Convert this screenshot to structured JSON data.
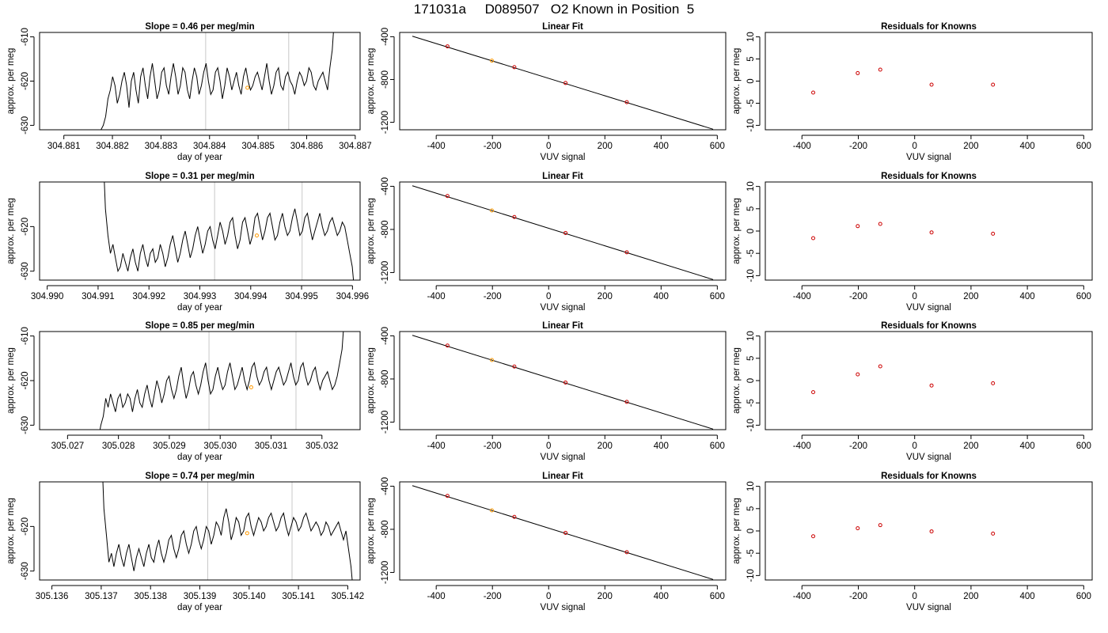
{
  "figure": {
    "title": "171031a     D089507   O2 Known in Position  5"
  },
  "colors": {
    "trace": "#000000",
    "known_points": "#cc0000",
    "highlight_point": "#ff9900",
    "marker_lines": "#c8c8c8",
    "fit_line": "#000000"
  },
  "chart_data": [
    {
      "type": "line",
      "row": 0,
      "col": 0,
      "title": "Slope =  0.46  per meg/min",
      "xlabel": "day of year",
      "ylabel": "approx. per meg",
      "xlim": [
        304.8805,
        304.8871
      ],
      "ylim": [
        -631,
        -609
      ],
      "xticks": [
        304.881,
        304.882,
        304.883,
        304.884,
        304.885,
        304.886,
        304.887
      ],
      "xtick_labels": [
        "304.881",
        "304.882",
        "304.883",
        "304.884",
        "304.885",
        "304.886",
        "304.887"
      ],
      "yticks": [
        -630,
        -620,
        -610
      ],
      "ytick_labels": [
        "-630",
        "-620",
        "-610"
      ],
      "trace_x_start": 304.88174,
      "trace_x_end": 304.88655,
      "trace_start_y": -631.5,
      "trace_end_y": -609,
      "trace_values": [
        -631,
        -630,
        -628,
        -624,
        -622,
        -619,
        -621,
        -625,
        -623,
        -620,
        -618,
        -621,
        -626,
        -620,
        -618,
        -622,
        -625,
        -619,
        -617,
        -621,
        -624,
        -619,
        -616,
        -620,
        -624,
        -622,
        -618,
        -617,
        -621,
        -623,
        -619,
        -616,
        -619,
        -623,
        -621,
        -617,
        -618,
        -622,
        -624,
        -620,
        -617,
        -619,
        -623,
        -621,
        -618,
        -616,
        -620,
        -623,
        -622,
        -618,
        -617,
        -620,
        -624,
        -621,
        -617,
        -619,
        -622,
        -620,
        -618,
        -621,
        -623,
        -619,
        -617,
        -620,
        -622,
        -621,
        -619,
        -618,
        -620,
        -622,
        -619,
        -616,
        -620,
        -623,
        -621,
        -618,
        -617,
        -621,
        -622,
        -619,
        -618,
        -620,
        -621,
        -623,
        -620,
        -618,
        -619,
        -621,
        -620,
        -617,
        -618,
        -621,
        -622,
        -620,
        -619,
        -618,
        -620,
        -622,
        -617,
        -613
      ],
      "marker_lines_x": [
        304.88392,
        304.88563
      ],
      "highlight_point": {
        "x": 304.88478,
        "y": -621.5
      }
    },
    {
      "type": "scatter",
      "row": 0,
      "col": 1,
      "title": "Linear Fit",
      "xlabel": "VUV signal",
      "ylabel": "approx. per meg",
      "xlim": [
        -530,
        630
      ],
      "ylim": [
        -1270,
        -360
      ],
      "xticks": [
        -400,
        -200,
        0,
        200,
        400,
        600
      ],
      "xtick_labels": [
        "-400",
        "-200",
        "0",
        "200",
        "400",
        "600"
      ],
      "yticks": [
        -1200,
        -800,
        -400
      ],
      "ytick_labels": [
        "-1200",
        "-800",
        "-400"
      ],
      "fit_line": {
        "x": [
          -485,
          585
        ],
        "y": [
          -395,
          -1265
        ]
      },
      "points": [
        {
          "x": -360,
          "y": -490
        },
        {
          "x": -122,
          "y": -685
        },
        {
          "x": 60,
          "y": -833
        },
        {
          "x": 278,
          "y": -1012
        }
      ],
      "highlight_point": {
        "x": -202,
        "y": -624
      }
    },
    {
      "type": "scatter",
      "row": 0,
      "col": 2,
      "title": "Residuals for Knowns",
      "xlabel": "VUV signal",
      "ylabel": "approx. per meg",
      "xlim": [
        -530,
        630
      ],
      "ylim": [
        -11,
        11
      ],
      "xticks": [
        -400,
        -200,
        0,
        200,
        400,
        600
      ],
      "xtick_labels": [
        "-400",
        "-200",
        "0",
        "200",
        "400",
        "600"
      ],
      "yticks": [
        -10,
        -5,
        0,
        5,
        10
      ],
      "ytick_labels": [
        "-10",
        "-5",
        "0",
        "5",
        "10"
      ],
      "points": [
        {
          "x": -360,
          "y": -2.6
        },
        {
          "x": -202,
          "y": 1.8
        },
        {
          "x": -122,
          "y": 2.6
        },
        {
          "x": 60,
          "y": -0.8
        },
        {
          "x": 278,
          "y": -0.8
        }
      ]
    },
    {
      "type": "line",
      "row": 1,
      "col": 0,
      "title": "Slope =  0.31  per meg/min",
      "xlabel": "day of year",
      "ylabel": "approx. per meg",
      "xlim": [
        304.98985,
        304.99615
      ],
      "ylim": [
        -632,
        -610
      ],
      "xticks": [
        304.99,
        304.991,
        304.992,
        304.993,
        304.994,
        304.995,
        304.996
      ],
      "xtick_labels": [
        "304.990",
        "304.991",
        "304.992",
        "304.993",
        "304.994",
        "304.995",
        "304.996"
      ],
      "yticks": [
        -630,
        -620
      ],
      "ytick_labels": [
        "-630",
        "-620"
      ],
      "trace_x_start": 304.99112,
      "trace_x_end": 304.99602,
      "trace_start_y": -609,
      "trace_end_y": -632,
      "trace_values": [
        -616,
        -622,
        -626,
        -624,
        -627,
        -630,
        -629,
        -626,
        -628,
        -630,
        -627,
        -625,
        -628,
        -630,
        -626,
        -624,
        -627,
        -629,
        -626,
        -625,
        -628,
        -627,
        -624,
        -626,
        -629,
        -627,
        -624,
        -622,
        -625,
        -628,
        -626,
        -623,
        -621,
        -624,
        -627,
        -625,
        -622,
        -620,
        -623,
        -626,
        -624,
        -621,
        -620,
        -623,
        -625,
        -622,
        -619,
        -621,
        -624,
        -622,
        -619,
        -618,
        -622,
        -625,
        -623,
        -619,
        -618,
        -621,
        -624,
        -622,
        -618,
        -617,
        -620,
        -623,
        -621,
        -618,
        -617,
        -620,
        -623,
        -622,
        -619,
        -617,
        -620,
        -622,
        -621,
        -618,
        -616,
        -619,
        -622,
        -621,
        -618,
        -617,
        -620,
        -623,
        -621,
        -619,
        -617,
        -620,
        -622,
        -621,
        -619,
        -618,
        -620,
        -622,
        -621,
        -619,
        -620,
        -623,
        -626,
        -629
      ],
      "marker_lines_x": [
        304.99329,
        304.99501
      ],
      "highlight_point": {
        "x": 304.99412,
        "y": -622
      }
    },
    {
      "type": "scatter",
      "row": 1,
      "col": 1,
      "title": "Linear Fit",
      "xlabel": "VUV signal",
      "ylabel": "approx. per meg",
      "xlim": [
        -530,
        630
      ],
      "ylim": [
        -1270,
        -360
      ],
      "xticks": [
        -400,
        -200,
        0,
        200,
        400,
        600
      ],
      "xtick_labels": [
        "-400",
        "-200",
        "0",
        "200",
        "400",
        "600"
      ],
      "yticks": [
        -1200,
        -800,
        -400
      ],
      "ytick_labels": [
        "-1200",
        "-800",
        "-400"
      ],
      "fit_line": {
        "x": [
          -485,
          585
        ],
        "y": [
          -395,
          -1265
        ]
      },
      "points": [
        {
          "x": -360,
          "y": -490
        },
        {
          "x": -122,
          "y": -685
        },
        {
          "x": 60,
          "y": -833
        },
        {
          "x": 278,
          "y": -1012
        }
      ],
      "highlight_point": {
        "x": -202,
        "y": -624
      }
    },
    {
      "type": "scatter",
      "row": 1,
      "col": 2,
      "title": "Residuals for Knowns",
      "xlabel": "VUV signal",
      "ylabel": "approx. per meg",
      "xlim": [
        -530,
        630
      ],
      "ylim": [
        -11,
        11
      ],
      "xticks": [
        -400,
        -200,
        0,
        200,
        400,
        600
      ],
      "xtick_labels": [
        "-400",
        "-200",
        "0",
        "200",
        "400",
        "600"
      ],
      "yticks": [
        -10,
        -5,
        0,
        5,
        10
      ],
      "ytick_labels": [
        "-10",
        "-5",
        "0",
        "5",
        "10"
      ],
      "points": [
        {
          "x": -360,
          "y": -1.6
        },
        {
          "x": -202,
          "y": 1.1
        },
        {
          "x": -122,
          "y": 1.6
        },
        {
          "x": 60,
          "y": -0.3
        },
        {
          "x": 278,
          "y": -0.6
        }
      ]
    },
    {
      "type": "line",
      "row": 2,
      "col": 0,
      "title": "Slope =  0.85  per meg/min",
      "xlabel": "day of year",
      "ylabel": "approx. per meg",
      "xlim": [
        305.02645,
        305.03275
      ],
      "ylim": [
        -631,
        -609
      ],
      "xticks": [
        305.027,
        305.028,
        305.029,
        305.03,
        305.031,
        305.032
      ],
      "xtick_labels": [
        "305.027",
        "305.028",
        "305.029",
        "305.030",
        "305.031",
        "305.032"
      ],
      "yticks": [
        -630,
        -620,
        -610
      ],
      "ytick_labels": [
        "-630",
        "-620",
        "-610"
      ],
      "trace_x_start": 305.02763,
      "trace_x_end": 305.03242,
      "trace_start_y": -631.5,
      "trace_end_y": -609,
      "trace_values": [
        -630,
        -628,
        -624,
        -626,
        -623,
        -625,
        -627,
        -624,
        -623,
        -626,
        -625,
        -623,
        -624,
        -627,
        -624,
        -622,
        -625,
        -626,
        -623,
        -621,
        -624,
        -626,
        -623,
        -620,
        -622,
        -625,
        -623,
        -620,
        -619,
        -622,
        -624,
        -622,
        -619,
        -617,
        -621,
        -624,
        -622,
        -619,
        -618,
        -621,
        -623,
        -621,
        -618,
        -616,
        -620,
        -623,
        -622,
        -619,
        -617,
        -620,
        -622,
        -621,
        -618,
        -616,
        -619,
        -622,
        -621,
        -619,
        -617,
        -620,
        -622,
        -620,
        -617,
        -616,
        -619,
        -621,
        -620,
        -618,
        -617,
        -620,
        -622,
        -620,
        -618,
        -617,
        -619,
        -621,
        -620,
        -618,
        -616,
        -619,
        -621,
        -620,
        -617,
        -616,
        -619,
        -621,
        -620,
        -618,
        -617,
        -620,
        -622,
        -620,
        -619,
        -618,
        -620,
        -622,
        -621,
        -619,
        -616,
        -613
      ],
      "marker_lines_x": [
        305.02978,
        305.03149
      ],
      "highlight_point": {
        "x": 305.03061,
        "y": -621.5
      }
    },
    {
      "type": "scatter",
      "row": 2,
      "col": 1,
      "title": "Linear Fit",
      "xlabel": "VUV signal",
      "ylabel": "approx. per meg",
      "xlim": [
        -530,
        630
      ],
      "ylim": [
        -1270,
        -360
      ],
      "xticks": [
        -400,
        -200,
        0,
        200,
        400,
        600
      ],
      "xtick_labels": [
        "-400",
        "-200",
        "0",
        "200",
        "400",
        "600"
      ],
      "yticks": [
        -1200,
        -800,
        -400
      ],
      "ytick_labels": [
        "-1200",
        "-800",
        "-400"
      ],
      "fit_line": {
        "x": [
          -485,
          585
        ],
        "y": [
          -395,
          -1265
        ]
      },
      "points": [
        {
          "x": -360,
          "y": -490
        },
        {
          "x": -122,
          "y": -685
        },
        {
          "x": 60,
          "y": -833
        },
        {
          "x": 278,
          "y": -1012
        }
      ],
      "highlight_point": {
        "x": -202,
        "y": -624
      }
    },
    {
      "type": "scatter",
      "row": 2,
      "col": 2,
      "title": "Residuals for Knowns",
      "xlabel": "VUV signal",
      "ylabel": "approx. per meg",
      "xlim": [
        -530,
        630
      ],
      "ylim": [
        -11,
        11
      ],
      "xticks": [
        -400,
        -200,
        0,
        200,
        400,
        600
      ],
      "xtick_labels": [
        "-400",
        "-200",
        "0",
        "200",
        "400",
        "600"
      ],
      "yticks": [
        -10,
        -5,
        0,
        5,
        10
      ],
      "ytick_labels": [
        "-10",
        "-5",
        "0",
        "5",
        "10"
      ],
      "points": [
        {
          "x": -360,
          "y": -2.6
        },
        {
          "x": -202,
          "y": 1.4
        },
        {
          "x": -122,
          "y": 3.2
        },
        {
          "x": 60,
          "y": -1.1
        },
        {
          "x": 278,
          "y": -0.6
        }
      ]
    },
    {
      "type": "line",
      "row": 3,
      "col": 0,
      "title": "Slope =  0.74  per meg/min",
      "xlabel": "day of year",
      "ylabel": "approx. per meg",
      "xlim": [
        305.13575,
        305.14225
      ],
      "ylim": [
        -632,
        -610
      ],
      "xticks": [
        305.136,
        305.137,
        305.138,
        305.139,
        305.14,
        305.141,
        305.142
      ],
      "xtick_labels": [
        "305.136",
        "305.137",
        "305.138",
        "305.139",
        "305.140",
        "305.141",
        "305.142"
      ],
      "yticks": [
        -630,
        -620
      ],
      "ytick_labels": [
        "-630",
        "-620"
      ],
      "trace_x_start": 305.13703,
      "trace_x_end": 305.14209,
      "trace_start_y": -609,
      "trace_end_y": -632,
      "trace_values": [
        -616,
        -622,
        -628,
        -626,
        -629,
        -626,
        -624,
        -627,
        -629,
        -626,
        -624,
        -627,
        -630,
        -627,
        -625,
        -627,
        -629,
        -626,
        -624,
        -627,
        -628,
        -625,
        -623,
        -626,
        -628,
        -626,
        -623,
        -622,
        -625,
        -627,
        -625,
        -622,
        -621,
        -624,
        -626,
        -624,
        -621,
        -620,
        -623,
        -625,
        -623,
        -620,
        -621,
        -624,
        -622,
        -619,
        -620,
        -622,
        -618,
        -616,
        -619,
        -623,
        -621,
        -618,
        -619,
        -622,
        -621,
        -618,
        -617,
        -620,
        -622,
        -620,
        -618,
        -619,
        -621,
        -620,
        -618,
        -617,
        -619,
        -621,
        -620,
        -618,
        -617,
        -620,
        -622,
        -620,
        -618,
        -619,
        -621,
        -620,
        -618,
        -617,
        -619,
        -621,
        -620,
        -619,
        -620,
        -622,
        -621,
        -619,
        -620,
        -622,
        -621,
        -620,
        -619,
        -621,
        -623,
        -621,
        -625,
        -629
      ],
      "marker_lines_x": [
        305.13916,
        305.14087
      ],
      "highlight_point": {
        "x": 305.13996,
        "y": -621.5
      }
    },
    {
      "type": "scatter",
      "row": 3,
      "col": 1,
      "title": "Linear Fit",
      "xlabel": "VUV signal",
      "ylabel": "approx. per meg",
      "xlim": [
        -530,
        630
      ],
      "ylim": [
        -1270,
        -360
      ],
      "xticks": [
        -400,
        -200,
        0,
        200,
        400,
        600
      ],
      "xtick_labels": [
        "-400",
        "-200",
        "0",
        "200",
        "400",
        "600"
      ],
      "yticks": [
        -1200,
        -800,
        -400
      ],
      "ytick_labels": [
        "-1200",
        "-800",
        "-400"
      ],
      "fit_line": {
        "x": [
          -485,
          585
        ],
        "y": [
          -395,
          -1265
        ]
      },
      "points": [
        {
          "x": -360,
          "y": -490
        },
        {
          "x": -122,
          "y": -685
        },
        {
          "x": 60,
          "y": -833
        },
        {
          "x": 278,
          "y": -1012
        }
      ],
      "highlight_point": {
        "x": -202,
        "y": -624
      }
    },
    {
      "type": "scatter",
      "row": 3,
      "col": 2,
      "title": "Residuals for Knowns",
      "xlabel": "VUV signal",
      "ylabel": "approx. per meg",
      "xlim": [
        -530,
        630
      ],
      "ylim": [
        -11,
        11
      ],
      "xticks": [
        -400,
        -200,
        0,
        200,
        400,
        600
      ],
      "xtick_labels": [
        "-400",
        "-200",
        "0",
        "200",
        "400",
        "600"
      ],
      "yticks": [
        -10,
        -5,
        0,
        5,
        10
      ],
      "ytick_labels": [
        "-10",
        "-5",
        "0",
        "5",
        "10"
      ],
      "points": [
        {
          "x": -360,
          "y": -1.2
        },
        {
          "x": -202,
          "y": 0.6
        },
        {
          "x": -122,
          "y": 1.3
        },
        {
          "x": 60,
          "y": -0.1
        },
        {
          "x": 278,
          "y": -0.6
        }
      ]
    }
  ]
}
